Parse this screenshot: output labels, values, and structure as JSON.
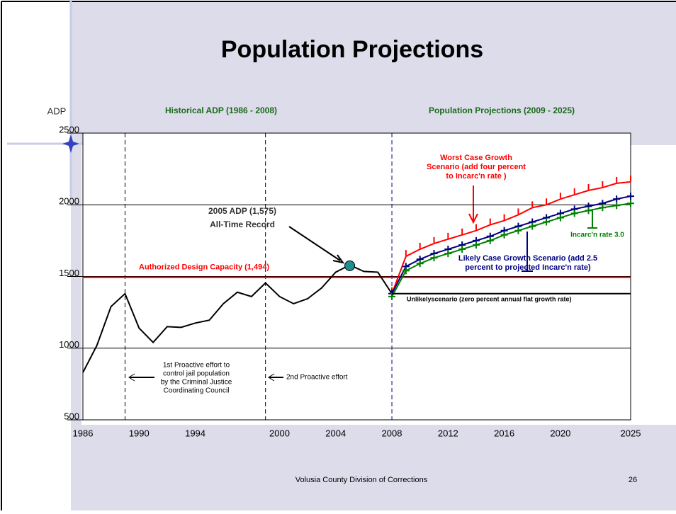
{
  "chart_data": {
    "type": "line",
    "title": "Population Projections",
    "y_label": "ADP",
    "section_headers": [
      "Historical ADP (1986 - 2008)",
      "Population Projections (2009 - 2025)"
    ],
    "xlim": [
      1986,
      2025
    ],
    "xticks": [
      1986,
      1990,
      1994,
      2000,
      2004,
      2008,
      2012,
      2016,
      2020,
      2025
    ],
    "ylim": [
      500,
      2500
    ],
    "yticks": [
      500,
      1000,
      1500,
      2000,
      2500
    ],
    "grid": true,
    "vlines": [
      1989,
      1999,
      2008
    ],
    "capacity": {
      "label": "Authorized Design Capacity (1,494)",
      "value": 1494,
      "color": "#ff0000"
    },
    "record": {
      "lines": [
        "2005 ADP (1,575)",
        "All-Time Record"
      ],
      "x": 2005,
      "value": 1575,
      "color": "#1f8f8f"
    },
    "series": [
      {
        "color": "#000000",
        "marker": "none",
        "x": [
          1986,
          1987,
          1988,
          1989,
          1990,
          1991,
          1992,
          1993,
          1994,
          1995,
          1996,
          1997,
          1998,
          1999,
          2000,
          2001,
          2002,
          2003,
          2004,
          2005,
          2006,
          2007,
          2008
        ],
        "values": [
          830,
          1020,
          1290,
          1380,
          1140,
          1040,
          1150,
          1145,
          1175,
          1195,
          1310,
          1390,
          1360,
          1455,
          1360,
          1310,
          1345,
          1420,
          1530,
          1580,
          1535,
          1530,
          1380
        ]
      },
      {
        "color": "#ff0000",
        "marker": "tick",
        "x": [
          2008,
          2009,
          2010,
          2011,
          2012,
          2013,
          2014,
          2015,
          2016,
          2017,
          2018,
          2019,
          2020,
          2021,
          2022,
          2023,
          2024,
          2025
        ],
        "values": [
          1380,
          1640,
          1690,
          1730,
          1760,
          1790,
          1820,
          1860,
          1890,
          1930,
          1980,
          2000,
          2040,
          2070,
          2100,
          2120,
          2150,
          2160
        ]
      },
      {
        "color": "#000080",
        "marker": "plus",
        "x": [
          2008,
          2009,
          2010,
          2011,
          2012,
          2013,
          2014,
          2015,
          2016,
          2017,
          2018,
          2019,
          2020,
          2021,
          2022,
          2023,
          2024,
          2025
        ],
        "values": [
          1380,
          1570,
          1620,
          1660,
          1690,
          1720,
          1750,
          1780,
          1820,
          1850,
          1880,
          1910,
          1940,
          1970,
          1990,
          2010,
          2040,
          2060
        ]
      },
      {
        "color": "#008000",
        "marker": "plus",
        "x": [
          2008,
          2009,
          2010,
          2011,
          2012,
          2013,
          2014,
          2015,
          2016,
          2017,
          2018,
          2019,
          2020,
          2021,
          2022,
          2023,
          2024,
          2025
        ],
        "values": [
          1360,
          1540,
          1590,
          1630,
          1660,
          1690,
          1720,
          1750,
          1790,
          1820,
          1850,
          1880,
          1910,
          1940,
          1960,
          1980,
          1995,
          2010
        ]
      },
      {
        "color": "#000000",
        "marker": "none",
        "x": [
          2008,
          2025
        ],
        "values": [
          1380,
          1380
        ]
      }
    ],
    "annotations": [
      {
        "lines": [
          "Worst Case Growth",
          "Scenario (add four percent",
          "to Incarc'n rate )"
        ],
        "color": "#ff0000"
      },
      {
        "lines": [
          "Incarc'n rate 3.0"
        ],
        "color": "#008000"
      },
      {
        "lines": [
          "Likely Case Growth Scenario (add 2.5",
          "percent to projected Incarc'n rate)"
        ],
        "color": "#000080"
      },
      {
        "lines": [
          "Unlikelyscenario (zero percent annual flat growth rate)"
        ],
        "color": "#000000"
      },
      {
        "lines": [
          "1st Proactive effort to",
          "control jail population",
          "by the Criminal Justice",
          "Coordinating Council"
        ],
        "color": "#000000"
      },
      {
        "lines": [
          "2nd Proactive effort"
        ],
        "color": "#000000"
      }
    ]
  },
  "footer": "Volusia County Division of Corrections",
  "page_number": "26"
}
